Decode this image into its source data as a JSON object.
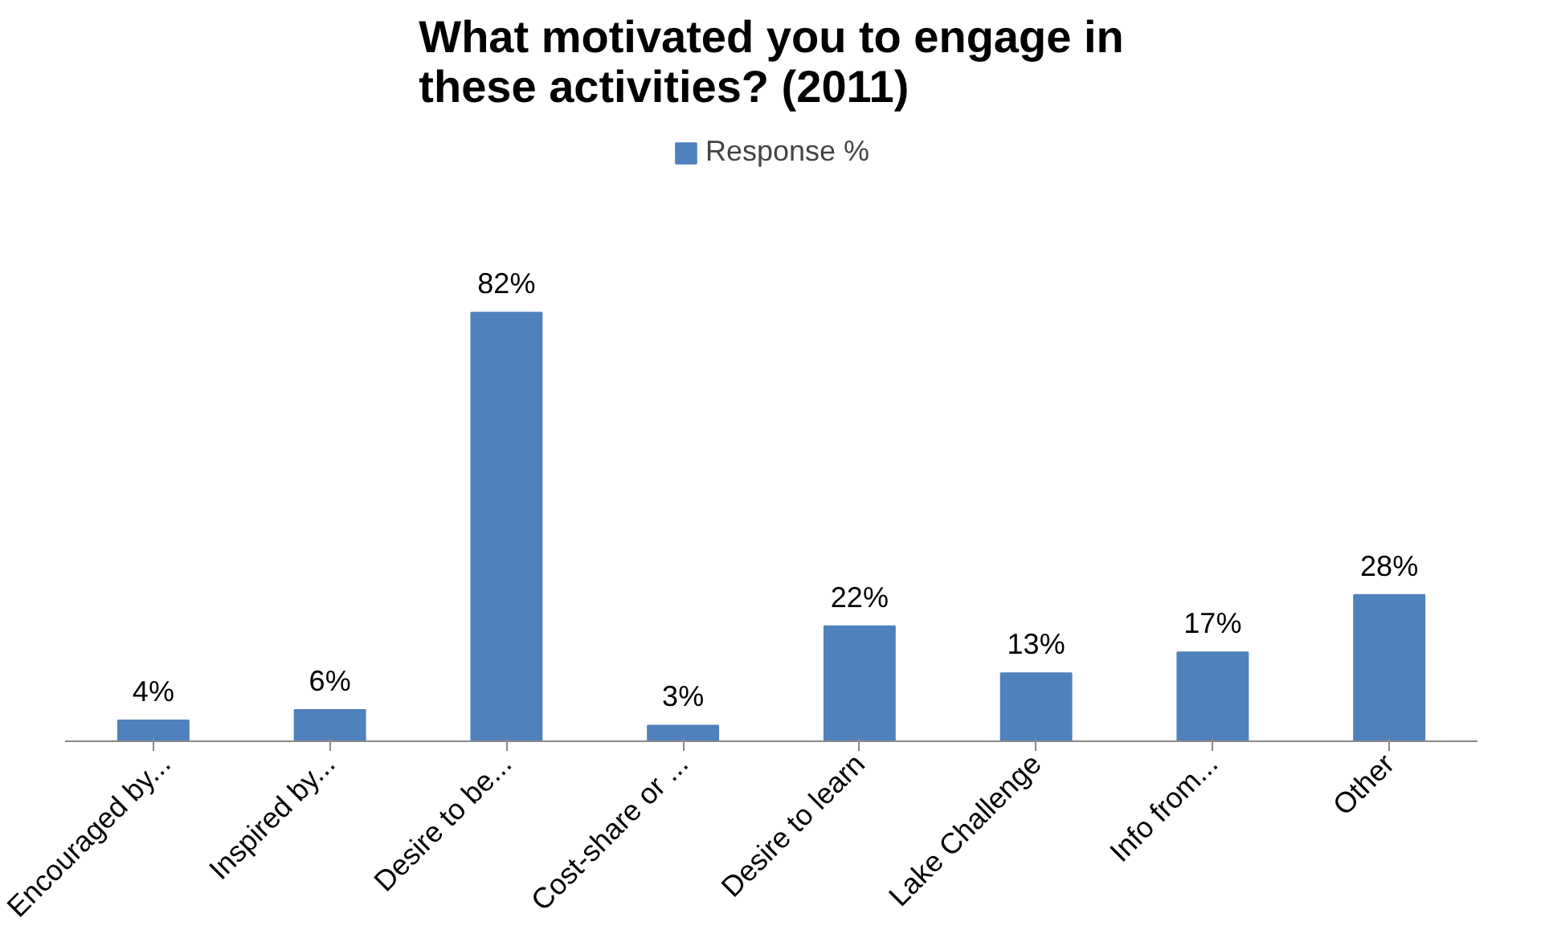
{
  "chart_data": {
    "type": "bar",
    "title": "What motivated you to engage in these activities? (2011)",
    "categories": [
      "Encouraged by...",
      "Inspired by...",
      "Desire to be...",
      "Cost-share or ...",
      "Desire to learn",
      "Lake Challenge",
      "Info from...",
      "Other"
    ],
    "series": [
      {
        "name": "Response %",
        "color": "#4f81bd",
        "values": [
          4,
          6,
          82,
          3,
          22,
          13,
          17,
          28
        ],
        "value_labels": [
          "4%",
          "6%",
          "82%",
          "3%",
          "22%",
          "13%",
          "17%",
          "28%"
        ]
      }
    ],
    "legend": "top",
    "grid": false
  }
}
